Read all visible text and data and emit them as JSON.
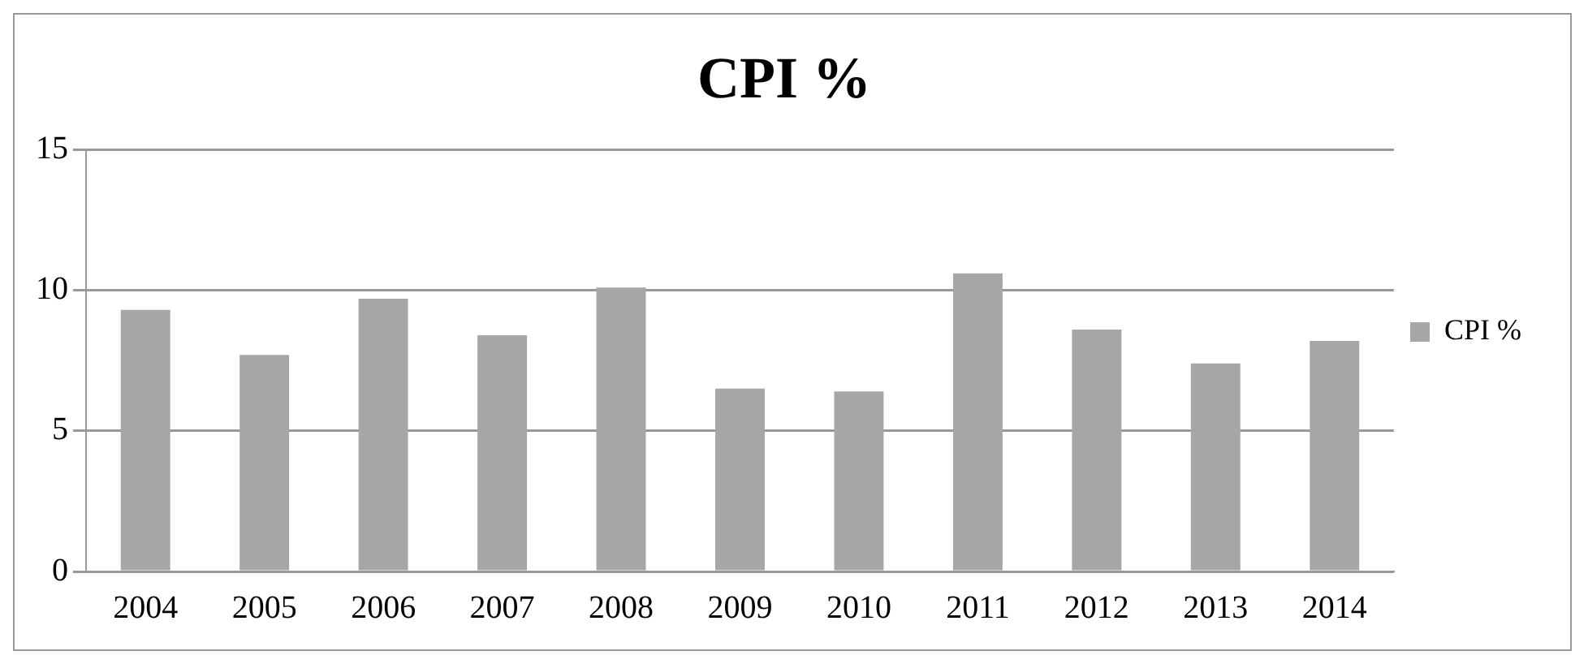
{
  "chart_data": {
    "type": "bar",
    "title": "CPI %",
    "categories": [
      "2004",
      "2005",
      "2006",
      "2007",
      "2008",
      "2009",
      "2010",
      "2011",
      "2012",
      "2013",
      "2014"
    ],
    "series": [
      {
        "name": "CPI %",
        "color": "#a6a6a6",
        "values": [
          9.3,
          7.7,
          9.7,
          8.4,
          10.1,
          6.5,
          6.4,
          10.6,
          8.6,
          7.4,
          8.2
        ]
      }
    ],
    "ylim": [
      0,
      15
    ],
    "yticks": [
      0,
      5,
      10,
      15
    ],
    "grid": "y",
    "legend": "right"
  }
}
